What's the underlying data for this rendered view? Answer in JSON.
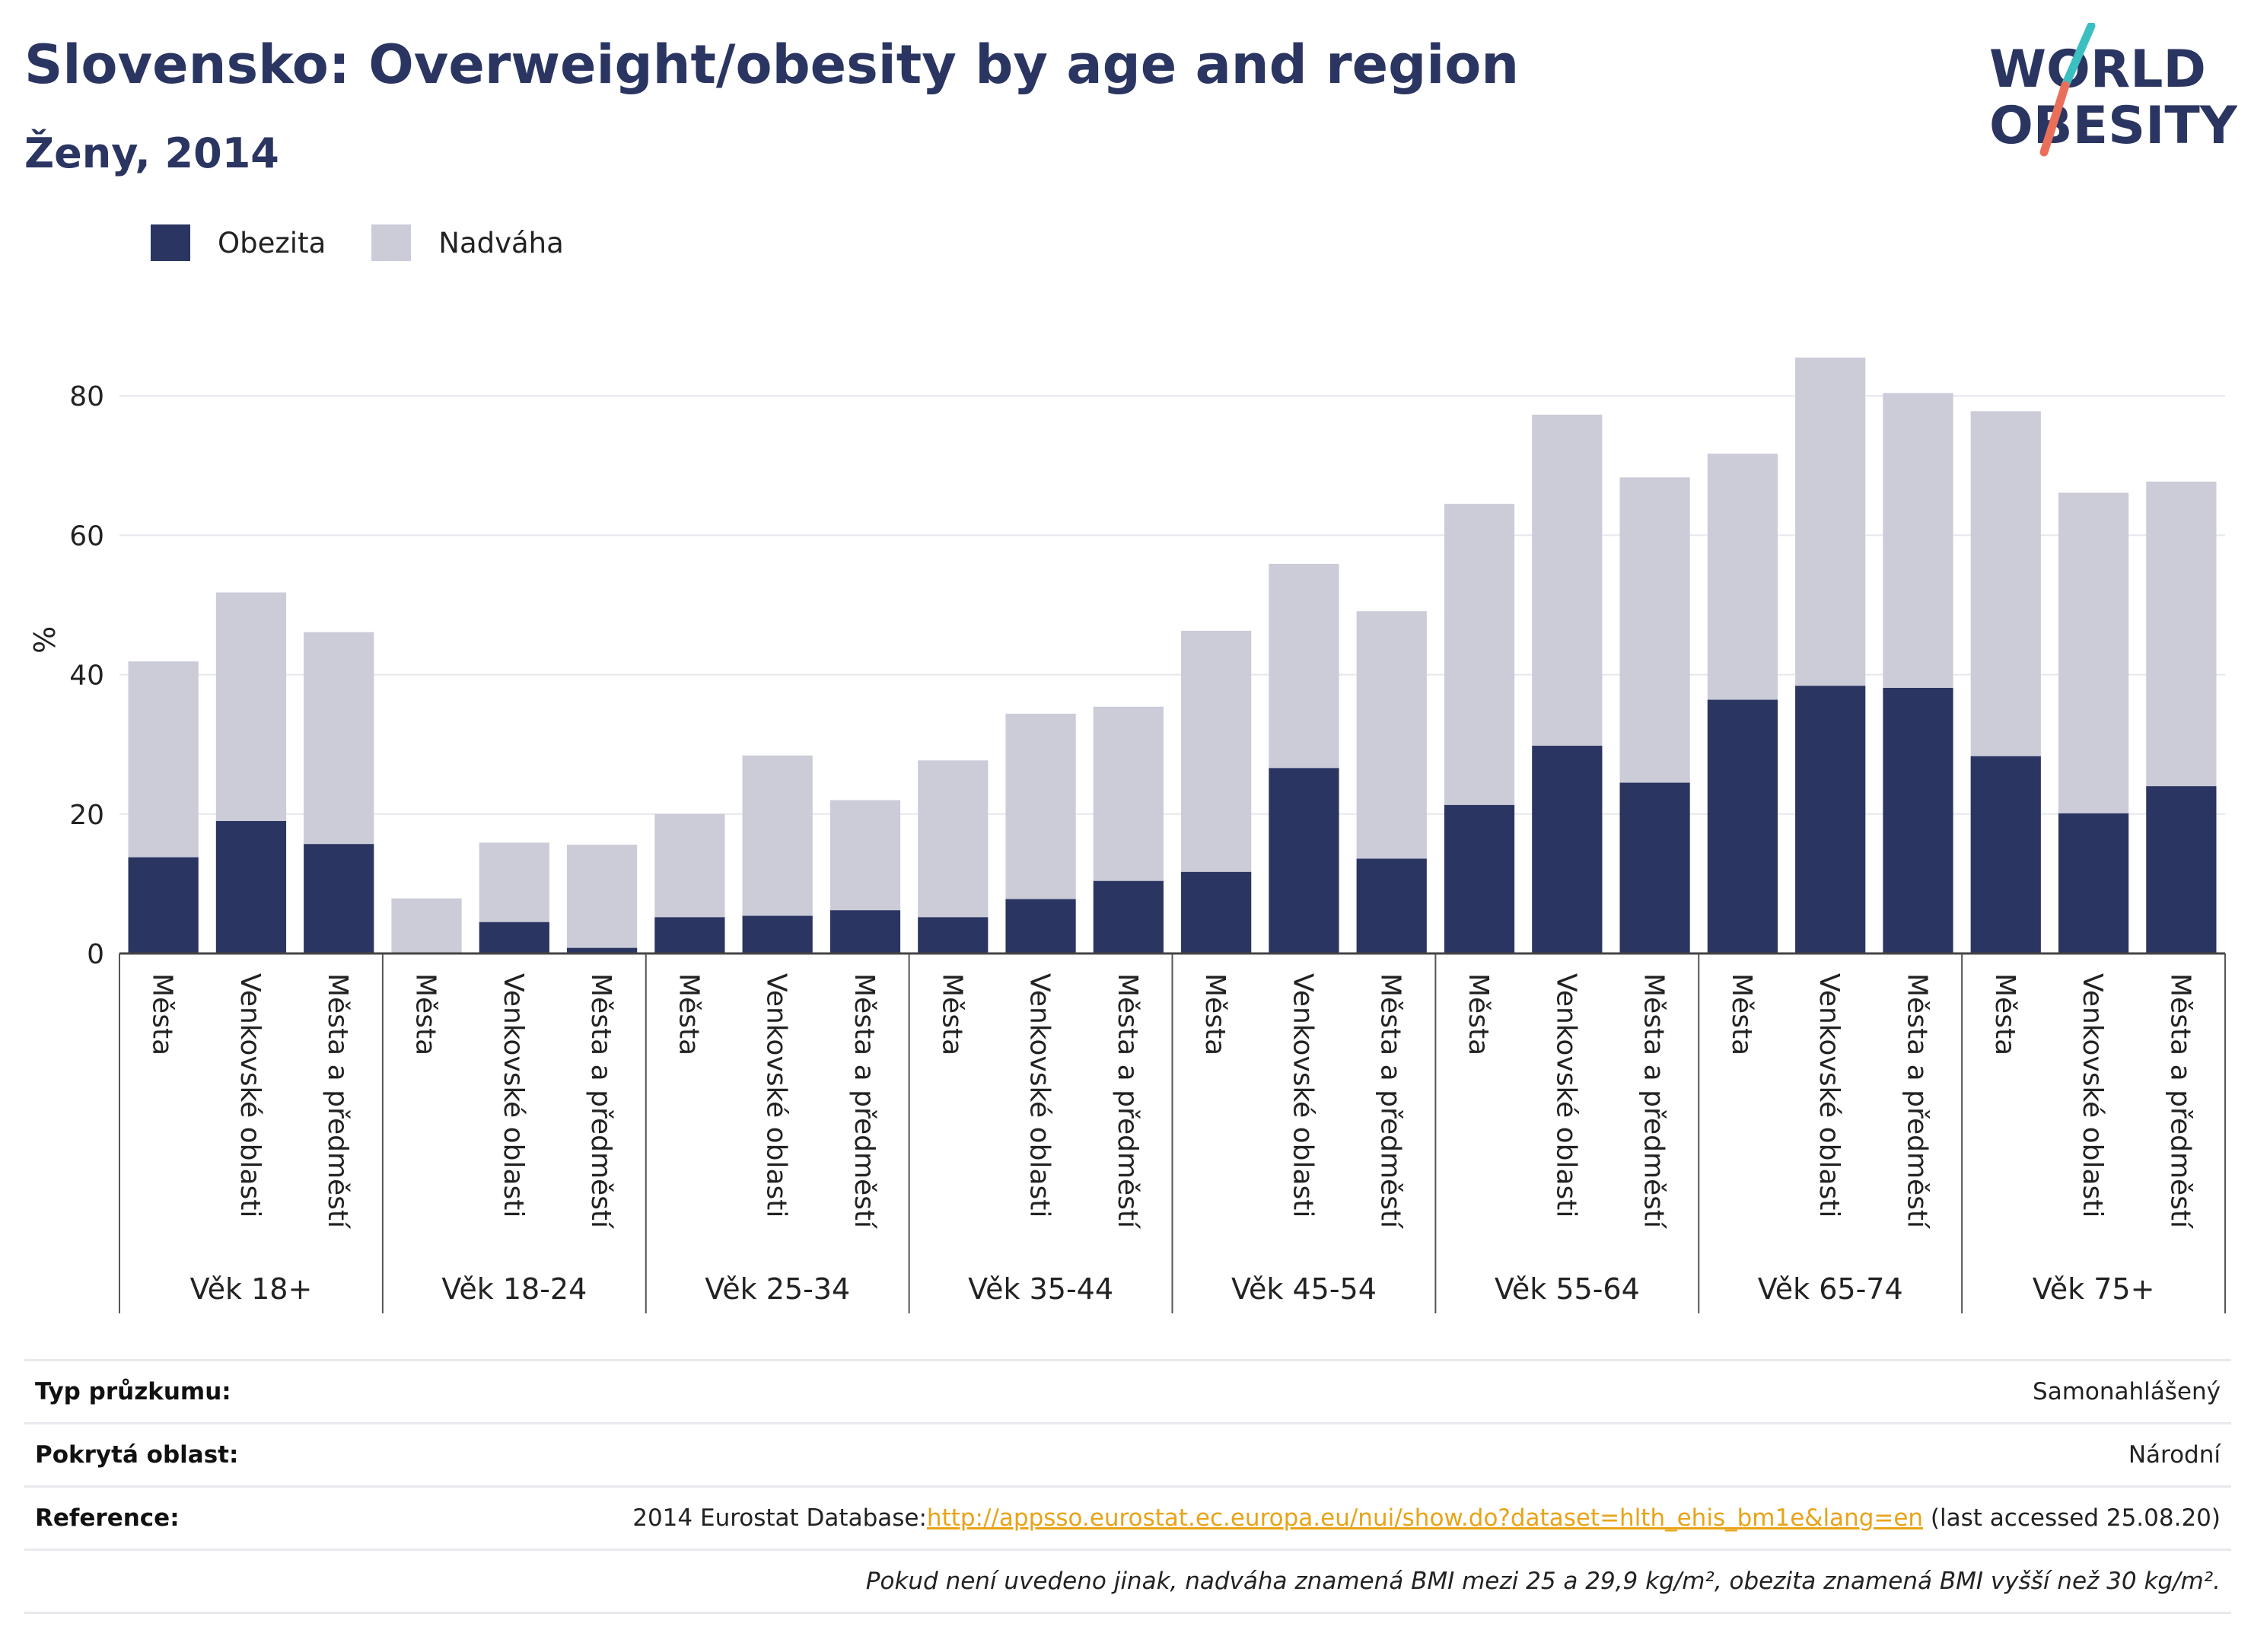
{
  "header": {
    "title": "Slovensko: Overweight/obesity by age and region",
    "subtitle": "Ženy, 2014"
  },
  "logo": {
    "line1": "WORLD",
    "line2": "OBESITY"
  },
  "colors": {
    "obezita": "#2a3561",
    "nadvaha": "#cbccd8",
    "title": "#2a3561",
    "link": "#e8a317",
    "logo_slash_top": "#3cbfc1",
    "logo_slash_bottom": "#ea6f5a"
  },
  "legend": [
    {
      "label": "Obezita",
      "color": "#2a3561"
    },
    {
      "label": "Nadváha",
      "color": "#cbccd8"
    }
  ],
  "chart_data": {
    "type": "bar",
    "stacked": true,
    "ylabel": "%",
    "ylim": [
      0,
      90
    ],
    "yticks": [
      0,
      20,
      40,
      60,
      80
    ],
    "grid": true,
    "legend_position": "top-left",
    "groups": [
      "Věk 18+",
      "Věk 18-24",
      "Věk 25-34",
      "Věk 35-44",
      "Věk 45-54",
      "Věk 55-64",
      "Věk 65-74",
      "Věk 75+"
    ],
    "subcategories": [
      "Města",
      "Venkovské oblasti",
      "Města a předměstí"
    ],
    "series": [
      {
        "name": "Obezita",
        "values": [
          13.8,
          19.0,
          15.7,
          0.0,
          4.5,
          0.8,
          5.2,
          5.4,
          6.2,
          5.2,
          7.8,
          10.4,
          11.7,
          26.6,
          13.6,
          21.3,
          29.8,
          24.5,
          36.4,
          38.4,
          38.1,
          28.3,
          20.1,
          24.0
        ]
      },
      {
        "name": "Nadváha",
        "values": [
          28.1,
          32.8,
          30.4,
          7.9,
          11.4,
          14.8,
          14.8,
          23.0,
          15.8,
          22.5,
          26.6,
          25.0,
          34.6,
          29.3,
          35.5,
          43.2,
          47.5,
          43.8,
          35.3,
          47.1,
          42.3,
          49.5,
          46.0,
          43.7
        ]
      }
    ],
    "totals": [
      41.9,
      51.8,
      46.1,
      7.9,
      15.9,
      15.6,
      20.0,
      28.4,
      22.0,
      27.7,
      34.4,
      35.4,
      46.3,
      55.9,
      49.1,
      64.5,
      77.3,
      68.3,
      71.7,
      85.5,
      80.4,
      77.8,
      66.1,
      67.7
    ]
  },
  "info": {
    "survey_type_label": "Typ průzkumu:",
    "survey_type_value": "Samonahlášený",
    "area_label": "Pokrytá oblast:",
    "area_value": "Národní",
    "reference_label": "Reference:",
    "reference_prefix": "2014 Eurostat Database:",
    "reference_link": "http://appsso.eurostat.ec.europa.eu/nui/show.do?dataset=hlth_ehis_bm1e&lang=en",
    "reference_suffix": " (last accessed 25.08.20)",
    "note": "Pokud není uvedeno jinak, nadváha znamená BMI mezi 25 a 29,9 kg/m², obezita znamená BMI vyšší než 30 kg/m²."
  }
}
